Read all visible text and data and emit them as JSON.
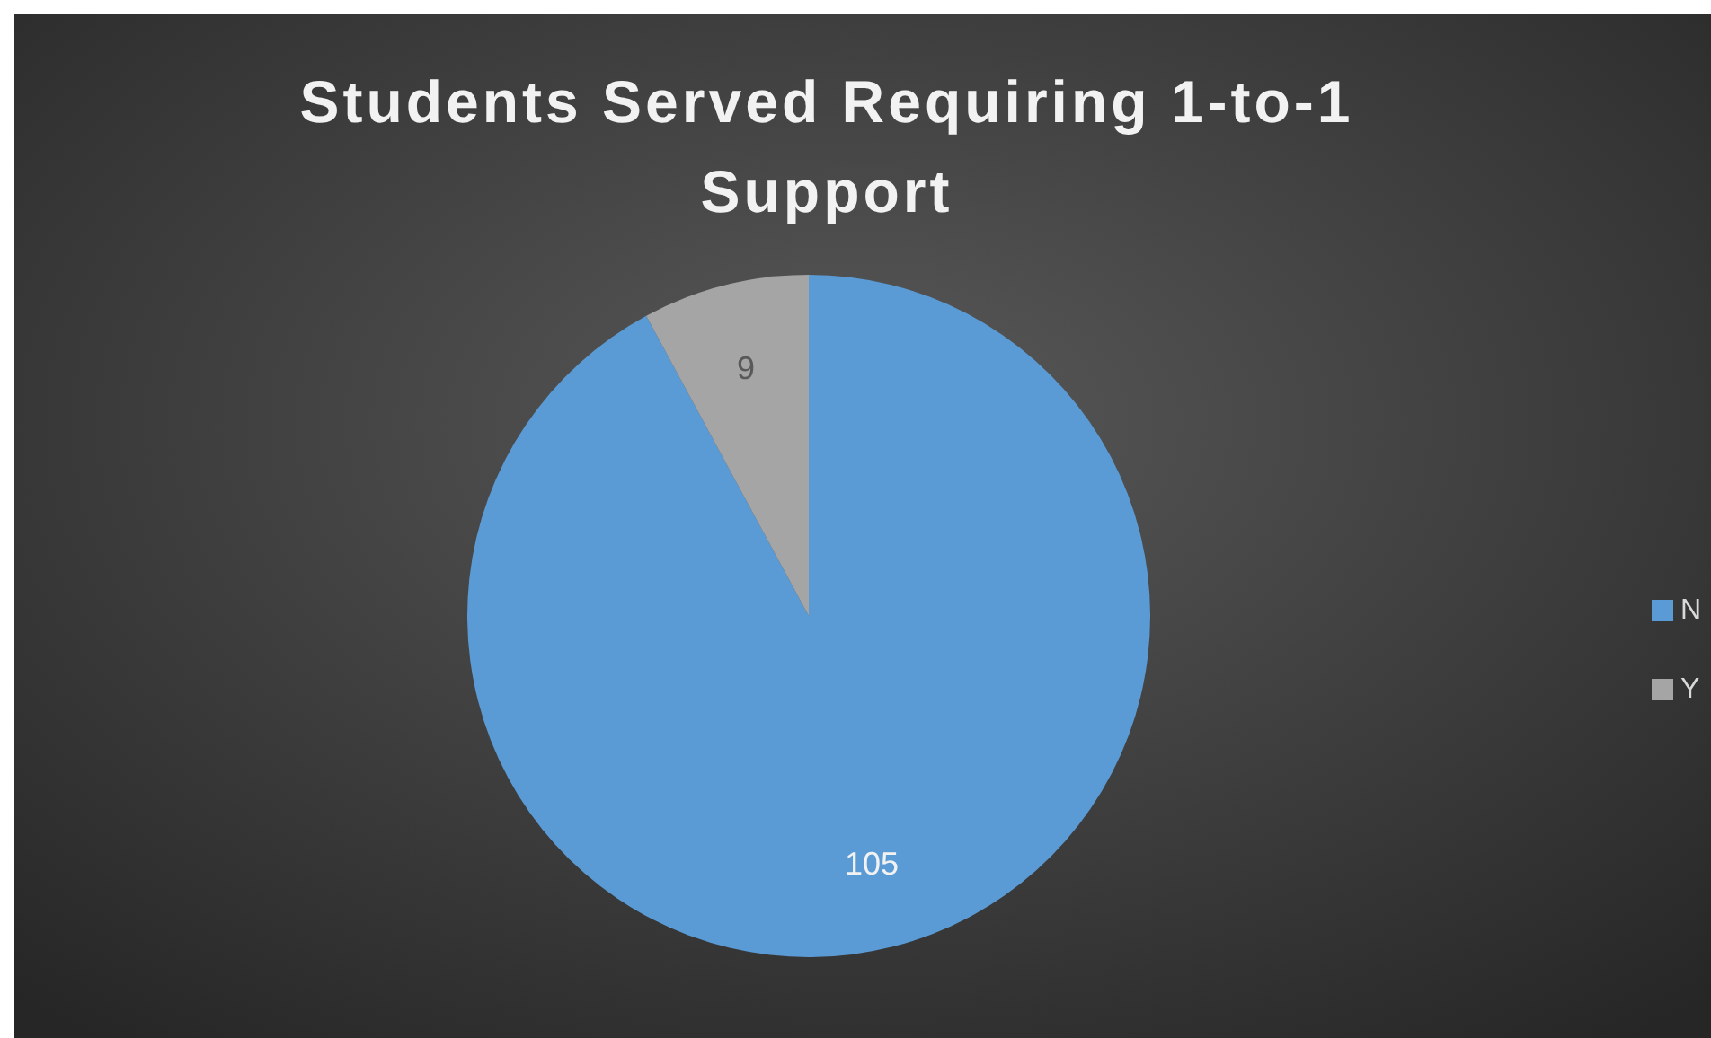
{
  "chart_data": {
    "type": "pie",
    "title": "Students Served Requiring 1-to-1 Support",
    "categories": [
      "N",
      "Y"
    ],
    "values": [
      105,
      9
    ],
    "colors": [
      "#5b9bd5",
      "#a5a5a5"
    ],
    "data_labels": true,
    "legend": "right"
  }
}
